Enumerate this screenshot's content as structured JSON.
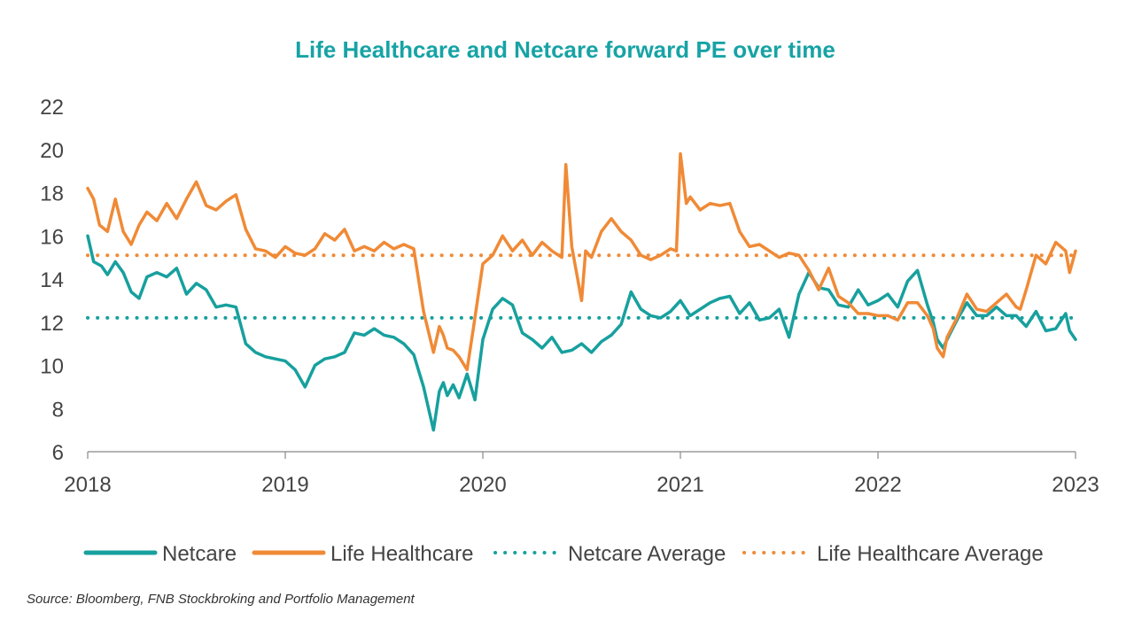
{
  "chart_data": {
    "type": "line",
    "title": "Life Healthcare and Netcare forward PE over time",
    "source": "Source: Bloomberg, FNB Stockbroking and Portfolio Management",
    "xlabel": "",
    "ylabel": "",
    "ylim": [
      6,
      22
    ],
    "yticks": [
      "6",
      "8",
      "10",
      "12",
      "14",
      "16",
      "18",
      "20",
      "22"
    ],
    "xlim": [
      2018,
      2023
    ],
    "xticks": [
      "2018",
      "2019",
      "2020",
      "2021",
      "2022",
      "2023"
    ],
    "grid": false,
    "legend_position": "bottom",
    "colors": {
      "netcare": "#17a09e",
      "life": "#f08a36",
      "title": "#17a3a5"
    },
    "series": [
      {
        "name": "Netcare",
        "style": "solid",
        "x": [
          2018.0,
          2018.03,
          2018.07,
          2018.1,
          2018.14,
          2018.18,
          2018.22,
          2018.26,
          2018.3,
          2018.35,
          2018.4,
          2018.45,
          2018.5,
          2018.55,
          2018.6,
          2018.65,
          2018.7,
          2018.75,
          2018.8,
          2018.85,
          2018.9,
          2018.95,
          2019.0,
          2019.05,
          2019.1,
          2019.15,
          2019.2,
          2019.25,
          2019.3,
          2019.35,
          2019.4,
          2019.45,
          2019.5,
          2019.55,
          2019.6,
          2019.65,
          2019.7,
          2019.75,
          2019.78,
          2019.8,
          2019.82,
          2019.85,
          2019.88,
          2019.92,
          2019.96,
          2020.0,
          2020.05,
          2020.1,
          2020.15,
          2020.2,
          2020.25,
          2020.3,
          2020.35,
          2020.4,
          2020.45,
          2020.5,
          2020.55,
          2020.6,
          2020.65,
          2020.7,
          2020.75,
          2020.8,
          2020.85,
          2020.9,
          2020.95,
          2021.0,
          2021.05,
          2021.1,
          2021.15,
          2021.2,
          2021.25,
          2021.3,
          2021.35,
          2021.4,
          2021.45,
          2021.5,
          2021.55,
          2021.6,
          2021.65,
          2021.7,
          2021.75,
          2021.8,
          2021.85,
          2021.9,
          2021.95,
          2022.0,
          2022.05,
          2022.1,
          2022.15,
          2022.2,
          2022.25,
          2022.28,
          2022.3,
          2022.33,
          2022.35,
          2022.4,
          2022.45,
          2022.5,
          2022.55,
          2022.6,
          2022.65,
          2022.7,
          2022.75,
          2022.8,
          2022.85,
          2022.9,
          2022.95,
          2022.97,
          2023.0
        ],
        "values": [
          16.0,
          14.8,
          14.6,
          14.2,
          14.8,
          14.3,
          13.4,
          13.1,
          14.1,
          14.3,
          14.1,
          14.5,
          13.3,
          13.8,
          13.5,
          12.7,
          12.8,
          12.7,
          11.0,
          10.6,
          10.4,
          10.3,
          10.2,
          9.8,
          9.0,
          10.0,
          10.3,
          10.4,
          10.6,
          11.5,
          11.4,
          11.7,
          11.4,
          11.3,
          11.0,
          10.5,
          9.0,
          7.0,
          8.8,
          9.2,
          8.6,
          9.1,
          8.5,
          9.6,
          8.4,
          11.2,
          12.6,
          13.1,
          12.8,
          11.5,
          11.2,
          10.8,
          11.3,
          10.6,
          10.7,
          11.0,
          10.6,
          11.1,
          11.4,
          11.9,
          13.4,
          12.6,
          12.3,
          12.2,
          12.5,
          13.0,
          12.3,
          12.6,
          12.9,
          13.1,
          13.2,
          12.4,
          12.9,
          12.1,
          12.2,
          12.6,
          11.3,
          13.3,
          14.3,
          13.6,
          13.5,
          12.8,
          12.7,
          13.5,
          12.8,
          13.0,
          13.3,
          12.7,
          13.9,
          14.4,
          12.8,
          12.0,
          11.2,
          10.8,
          11.2,
          12.1,
          12.9,
          12.3,
          12.3,
          12.7,
          12.3,
          12.3,
          11.8,
          12.5,
          11.6,
          11.7,
          12.4,
          11.6,
          11.2
        ]
      },
      {
        "name": "Life Healthcare",
        "style": "solid",
        "x": [
          2018.0,
          2018.03,
          2018.06,
          2018.1,
          2018.14,
          2018.18,
          2018.22,
          2018.26,
          2018.3,
          2018.35,
          2018.4,
          2018.45,
          2018.5,
          2018.55,
          2018.6,
          2018.65,
          2018.7,
          2018.75,
          2018.8,
          2018.85,
          2018.9,
          2018.95,
          2019.0,
          2019.05,
          2019.1,
          2019.15,
          2019.2,
          2019.25,
          2019.3,
          2019.35,
          2019.4,
          2019.45,
          2019.5,
          2019.55,
          2019.6,
          2019.65,
          2019.7,
          2019.75,
          2019.78,
          2019.8,
          2019.82,
          2019.85,
          2019.88,
          2019.92,
          2019.95,
          2020.0,
          2020.05,
          2020.1,
          2020.15,
          2020.2,
          2020.25,
          2020.3,
          2020.35,
          2020.4,
          2020.42,
          2020.45,
          2020.5,
          2020.52,
          2020.55,
          2020.6,
          2020.65,
          2020.7,
          2020.75,
          2020.8,
          2020.85,
          2020.9,
          2020.95,
          2020.98,
          2021.0,
          2021.03,
          2021.05,
          2021.1,
          2021.15,
          2021.2,
          2021.25,
          2021.3,
          2021.35,
          2021.4,
          2021.45,
          2021.5,
          2021.55,
          2021.6,
          2021.65,
          2021.7,
          2021.75,
          2021.8,
          2021.85,
          2021.9,
          2021.95,
          2022.0,
          2022.05,
          2022.1,
          2022.15,
          2022.2,
          2022.25,
          2022.28,
          2022.3,
          2022.33,
          2022.35,
          2022.4,
          2022.45,
          2022.5,
          2022.55,
          2022.6,
          2022.65,
          2022.7,
          2022.72,
          2022.75,
          2022.8,
          2022.85,
          2022.9,
          2022.95,
          2022.97,
          2023.0
        ],
        "values": [
          18.2,
          17.7,
          16.5,
          16.2,
          17.7,
          16.2,
          15.6,
          16.5,
          17.1,
          16.7,
          17.5,
          16.8,
          17.7,
          18.5,
          17.4,
          17.2,
          17.6,
          17.9,
          16.3,
          15.4,
          15.3,
          15.0,
          15.5,
          15.2,
          15.1,
          15.4,
          16.1,
          15.8,
          16.3,
          15.3,
          15.5,
          15.3,
          15.7,
          15.4,
          15.6,
          15.4,
          12.5,
          10.6,
          11.8,
          11.4,
          10.8,
          10.7,
          10.4,
          9.8,
          11.6,
          14.7,
          15.1,
          16.0,
          15.3,
          15.8,
          15.1,
          15.7,
          15.3,
          15.0,
          19.3,
          15.5,
          13.0,
          15.3,
          15.0,
          16.2,
          16.8,
          16.2,
          15.8,
          15.1,
          14.9,
          15.1,
          15.4,
          15.3,
          19.8,
          17.5,
          17.8,
          17.2,
          17.5,
          17.4,
          17.5,
          16.2,
          15.5,
          15.6,
          15.3,
          15.0,
          15.2,
          15.1,
          14.4,
          13.5,
          14.5,
          13.2,
          12.9,
          12.4,
          12.4,
          12.3,
          12.3,
          12.1,
          12.9,
          12.9,
          12.3,
          11.7,
          10.8,
          10.4,
          11.3,
          12.2,
          13.3,
          12.6,
          12.5,
          12.9,
          13.3,
          12.7,
          12.6,
          13.5,
          15.1,
          14.7,
          15.7,
          15.3,
          14.3,
          15.3
        ]
      },
      {
        "name": "Netcare Average",
        "style": "dotted",
        "x": [
          2018,
          2023
        ],
        "values": [
          12.2,
          12.2
        ]
      },
      {
        "name": "Life Healthcare Average",
        "style": "dotted",
        "x": [
          2018,
          2023
        ],
        "values": [
          15.1,
          15.1
        ]
      }
    ]
  }
}
